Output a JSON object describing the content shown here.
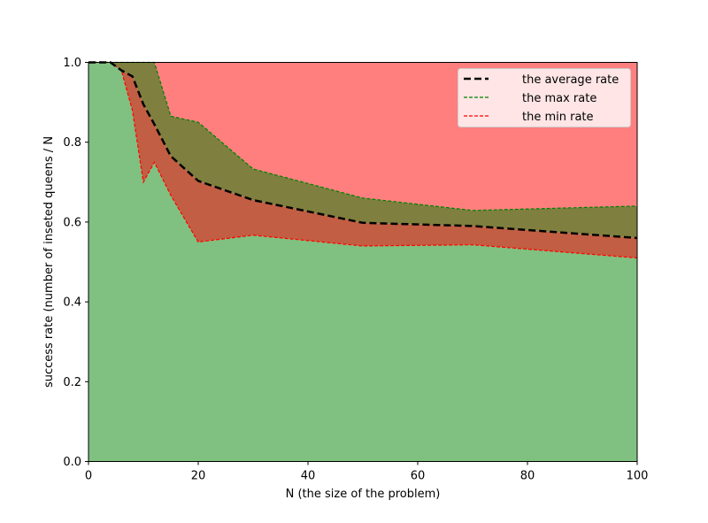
{
  "chart_data": {
    "type": "area",
    "title": "",
    "xlabel": "N (the size of the problem)",
    "ylabel": "success rate (number of inseted queens / N",
    "xlim": [
      0,
      100
    ],
    "ylim": [
      0.0,
      1.0
    ],
    "xticks": [
      0,
      20,
      40,
      60,
      80,
      100
    ],
    "yticks": [
      "0.0",
      "0.2",
      "0.4",
      "0.6",
      "0.8",
      "1.0"
    ],
    "grid": false,
    "legend_position": "top-right",
    "fills": {
      "below_min": "#80c080",
      "min_to_average": "#c25e43",
      "average_to_max": "#7f7f3f",
      "above_max": "#ff7f7f"
    },
    "x": [
      0,
      4,
      6,
      8,
      10,
      12,
      15,
      20,
      30,
      50,
      70,
      100
    ],
    "series": [
      {
        "name": "the average rate",
        "color": "#000000",
        "style": "dashed-thick",
        "values": [
          1.0,
          1.0,
          0.98,
          0.965,
          0.895,
          0.845,
          0.765,
          0.703,
          0.655,
          0.598,
          0.59,
          0.56
        ]
      },
      {
        "name": "the max rate",
        "color": "#008000",
        "style": "dashed",
        "values": [
          1.0,
          1.0,
          1.0,
          1.0,
          1.0,
          1.0,
          0.865,
          0.85,
          0.733,
          0.66,
          0.629,
          0.64
        ]
      },
      {
        "name": "the min rate",
        "color": "#ff0000",
        "style": "dashed",
        "values": [
          1.0,
          1.0,
          0.98,
          0.88,
          0.7,
          0.75,
          0.667,
          0.55,
          0.567,
          0.54,
          0.543,
          0.51
        ]
      }
    ]
  }
}
